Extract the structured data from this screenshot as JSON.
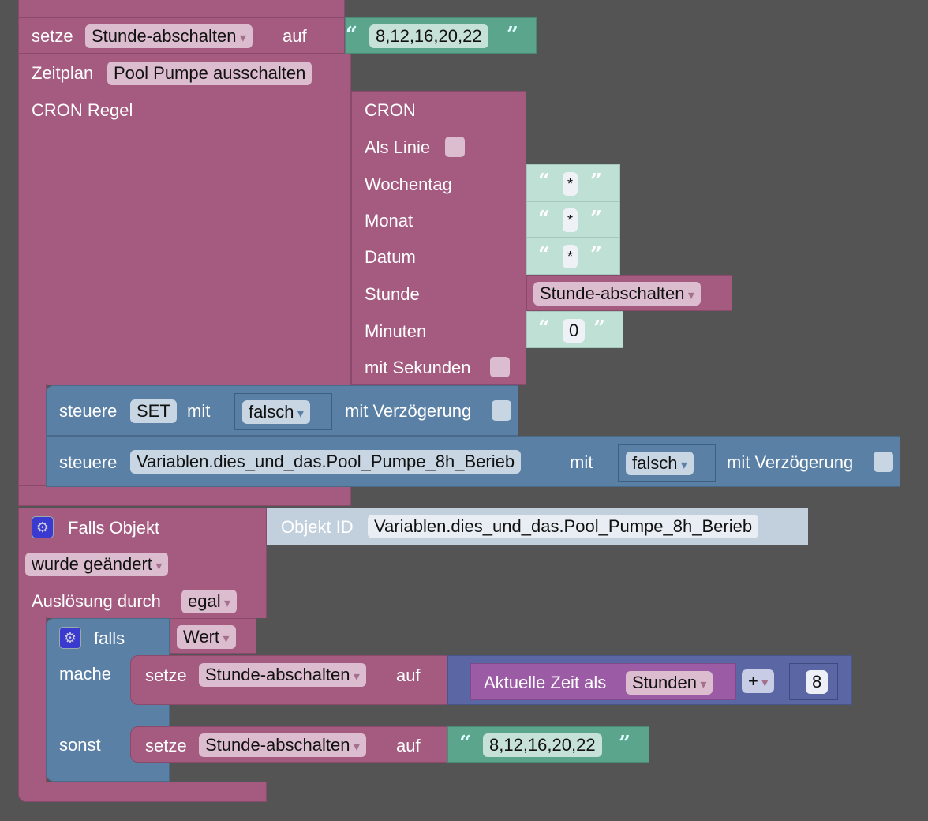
{
  "colors": {
    "background": "#545454",
    "procedures": "#a55b80",
    "text": "#5ba58c",
    "logic": "#5b80a5",
    "math": "#5b67a5",
    "time": "#9b5ba5"
  },
  "set_top": {
    "label": "setze",
    "variable": "Stunde-abschalten",
    "to": "auf",
    "value": "8,12,16,20,22"
  },
  "schedule": {
    "label": "Zeitplan",
    "name": "Pool Pumpe ausschalten",
    "cron_label": "CRON Regel",
    "cron": {
      "title": "CRON",
      "as_line": "Als Linie",
      "weekday": "Wochentag",
      "weekday_val": "*",
      "month": "Monat",
      "month_val": "*",
      "date": "Datum",
      "date_val": "*",
      "hour": "Stunde",
      "hour_var": "Stunde-abschalten",
      "minutes": "Minuten",
      "minutes_val": "0",
      "with_seconds": "mit Sekunden"
    },
    "control1": {
      "label": "steuere",
      "target": "SET",
      "with": "mit",
      "value": "falsch",
      "delay": "mit Verzögerung"
    },
    "control2": {
      "label": "steuere",
      "target": "Variablen.dies_und_das.Pool_Pumpe_8h_Berieb",
      "with": "mit",
      "value": "falsch",
      "delay": "mit Verzögerung"
    }
  },
  "trigger": {
    "label": "Falls Objekt",
    "object_id_label": "Objekt ID",
    "object_id": "Variablen.dies_und_das.Pool_Pumpe_8h_Berieb",
    "event": "wurde geändert",
    "by_label": "Auslösung durch",
    "by": "egal",
    "if": {
      "label": "falls",
      "cond": "Wert",
      "do": "mache",
      "else": "sonst",
      "set1": {
        "label": "setze",
        "variable": "Stunde-abschalten",
        "to": "auf",
        "time_label": "Aktuelle Zeit als",
        "unit": "Stunden",
        "op": "+",
        "num": "8"
      },
      "set2": {
        "label": "setze",
        "variable": "Stunde-abschalten",
        "to": "auf",
        "value": "8,12,16,20,22"
      }
    }
  }
}
